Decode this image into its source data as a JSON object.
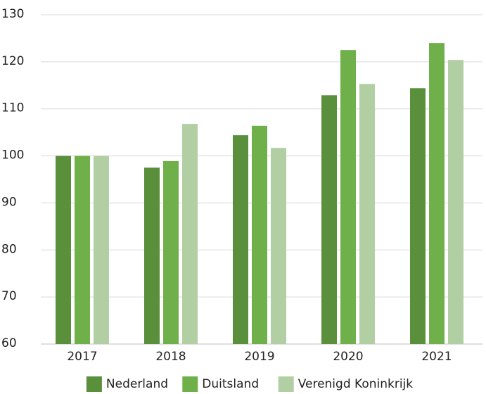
{
  "chart_data": {
    "type": "bar",
    "categories": [
      "2017",
      "2018",
      "2019",
      "2020",
      "2021"
    ],
    "series": [
      {
        "name": "Nederland",
        "color": "#5a8f3c",
        "values": [
          100,
          97.5,
          104.4,
          112.9,
          114.4
        ]
      },
      {
        "name": "Duitsland",
        "color": "#6fb04a",
        "values": [
          100,
          98.9,
          106.4,
          122.5,
          124.0
        ]
      },
      {
        "name": "Verenigd Koninkrijk",
        "color": "#b2cfa3",
        "values": [
          100,
          106.8,
          101.7,
          115.3,
          120.4
        ]
      }
    ],
    "ylim": [
      60,
      130
    ],
    "yticks": [
      60,
      70,
      80,
      90,
      100,
      110,
      120,
      130
    ],
    "grid": true,
    "legend": "bottom"
  }
}
